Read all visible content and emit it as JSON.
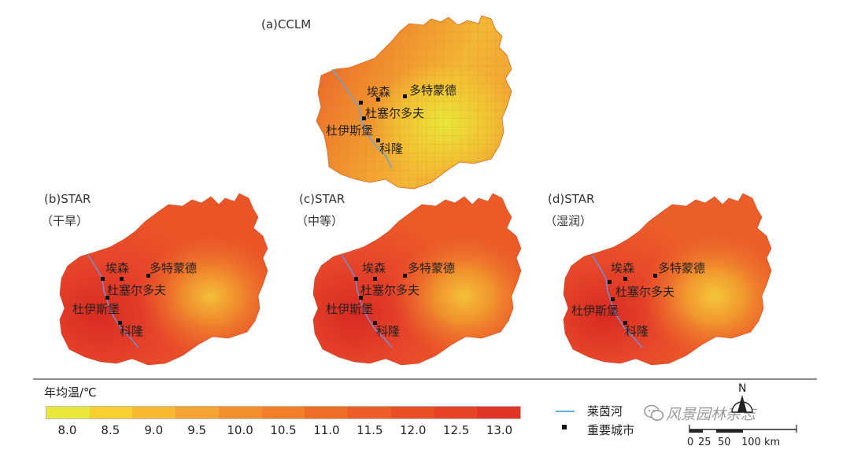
{
  "panels": [
    {
      "id": "a",
      "label": "(a)CCLM",
      "sub": ""
    },
    {
      "id": "b",
      "label": "(b)STAR",
      "sub": "（干旱）"
    },
    {
      "id": "c",
      "label": "(c)STAR",
      "sub": "（中等）"
    },
    {
      "id": "d",
      "label": "(d)STAR",
      "sub": "（湿润）"
    }
  ],
  "cities": {
    "essen": "埃森",
    "dortmund": "多特蒙德",
    "duesseldorf": "杜塞尔多夫",
    "duisburg": "杜伊斯堡",
    "cologne": "科隆"
  },
  "legend": {
    "title": "年均温/℃",
    "ticks": [
      "8.0",
      "8.5",
      "9.0",
      "9.5",
      "10.0",
      "10.5",
      "11.0",
      "11.5",
      "12.0",
      "12.5",
      "13.0"
    ],
    "colors": [
      "#e8e83a",
      "#f5d02f",
      "#f7b932",
      "#f5a431",
      "#f38f2c",
      "#f27e29",
      "#ef6c27",
      "#ec5c25",
      "#e94e25",
      "#e64226",
      "#e23528"
    ],
    "river_label": "莱茵河",
    "city_label": "重要城市",
    "river_color": "#5fb2dc"
  },
  "scale": {
    "north": "N",
    "ticks": [
      "0",
      "25",
      "50",
      "100 km"
    ]
  },
  "watermark": "风景园林杂志"
}
